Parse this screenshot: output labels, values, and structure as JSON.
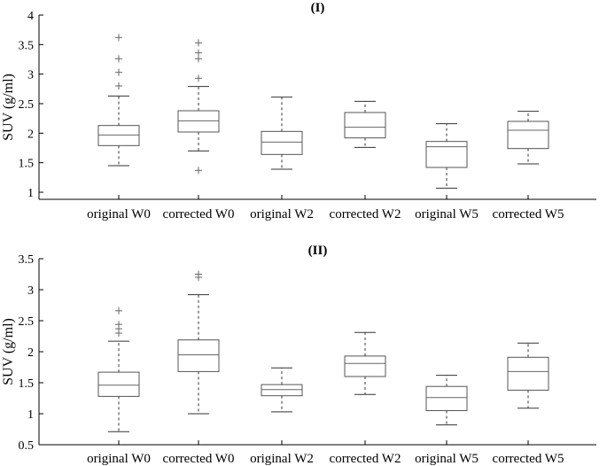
{
  "chart_data": [
    {
      "type": "box",
      "title": "(I)",
      "ylabel": "SUV (g/ml)",
      "xlabel": "",
      "ylim": [
        0.88,
        4.0
      ],
      "yticks": [
        1,
        1.5,
        2,
        2.5,
        3,
        3.5,
        4
      ],
      "ytick_labels": [
        "1",
        "1.5",
        "2",
        "2.5",
        "3",
        "3.5",
        "4"
      ],
      "grid": false,
      "categories": [
        "original W0",
        "corrected W0",
        "original W2",
        "corrected W2",
        "original W5",
        "corrected W5"
      ],
      "boxes": [
        {
          "whisker_low": 1.45,
          "q1": 1.79,
          "median": 1.97,
          "q3": 2.13,
          "whisker_high": 2.63,
          "outliers": [
            2.8,
            3.03,
            3.26,
            3.62
          ]
        },
        {
          "whisker_low": 1.7,
          "q1": 2.02,
          "median": 2.21,
          "q3": 2.38,
          "whisker_high": 2.79,
          "outliers": [
            1.37,
            2.93,
            3.26,
            3.36,
            3.53
          ]
        },
        {
          "whisker_low": 1.39,
          "q1": 1.64,
          "median": 1.85,
          "q3": 2.03,
          "whisker_high": 2.61,
          "outliers": []
        },
        {
          "whisker_low": 1.76,
          "q1": 1.92,
          "median": 2.1,
          "q3": 2.35,
          "whisker_high": 2.54,
          "outliers": []
        },
        {
          "whisker_low": 1.07,
          "q1": 1.42,
          "median": 1.77,
          "q3": 1.86,
          "whisker_high": 2.16,
          "outliers": []
        },
        {
          "whisker_low": 1.48,
          "q1": 1.74,
          "median": 2.05,
          "q3": 2.2,
          "whisker_high": 2.37,
          "outliers": []
        }
      ]
    },
    {
      "type": "box",
      "title": "(II)",
      "ylabel": "SUV (g/ml)",
      "xlabel": "",
      "ylim": [
        0.5,
        3.5
      ],
      "yticks": [
        0.5,
        1,
        1.5,
        2,
        2.5,
        3,
        3.5
      ],
      "ytick_labels": [
        "0.5",
        "1",
        "1.5",
        "2",
        "2.5",
        "3",
        "3.5"
      ],
      "grid": false,
      "categories": [
        "original W0",
        "corrected W0",
        "original W2",
        "corrected W2",
        "original W5",
        "corrected W5"
      ],
      "boxes": [
        {
          "whisker_low": 0.71,
          "q1": 1.28,
          "median": 1.46,
          "q3": 1.67,
          "whisker_high": 2.17,
          "outliers": [
            2.3,
            2.37,
            2.44,
            2.66
          ]
        },
        {
          "whisker_low": 1.0,
          "q1": 1.68,
          "median": 1.95,
          "q3": 2.19,
          "whisker_high": 2.92,
          "outliers": [
            3.2,
            3.25
          ]
        },
        {
          "whisker_low": 1.03,
          "q1": 1.29,
          "median": 1.39,
          "q3": 1.47,
          "whisker_high": 1.74,
          "outliers": []
        },
        {
          "whisker_low": 1.31,
          "q1": 1.6,
          "median": 1.81,
          "q3": 1.93,
          "whisker_high": 2.31,
          "outliers": []
        },
        {
          "whisker_low": 0.82,
          "q1": 1.05,
          "median": 1.26,
          "q3": 1.44,
          "whisker_high": 1.62,
          "outliers": []
        },
        {
          "whisker_low": 1.09,
          "q1": 1.38,
          "median": 1.68,
          "q3": 1.91,
          "whisker_high": 2.14,
          "outliers": []
        }
      ]
    }
  ],
  "colors": {
    "axis": "#000000",
    "box": "#555555",
    "whisker": "#333333",
    "median": "#666666",
    "outlier": "#666666"
  }
}
